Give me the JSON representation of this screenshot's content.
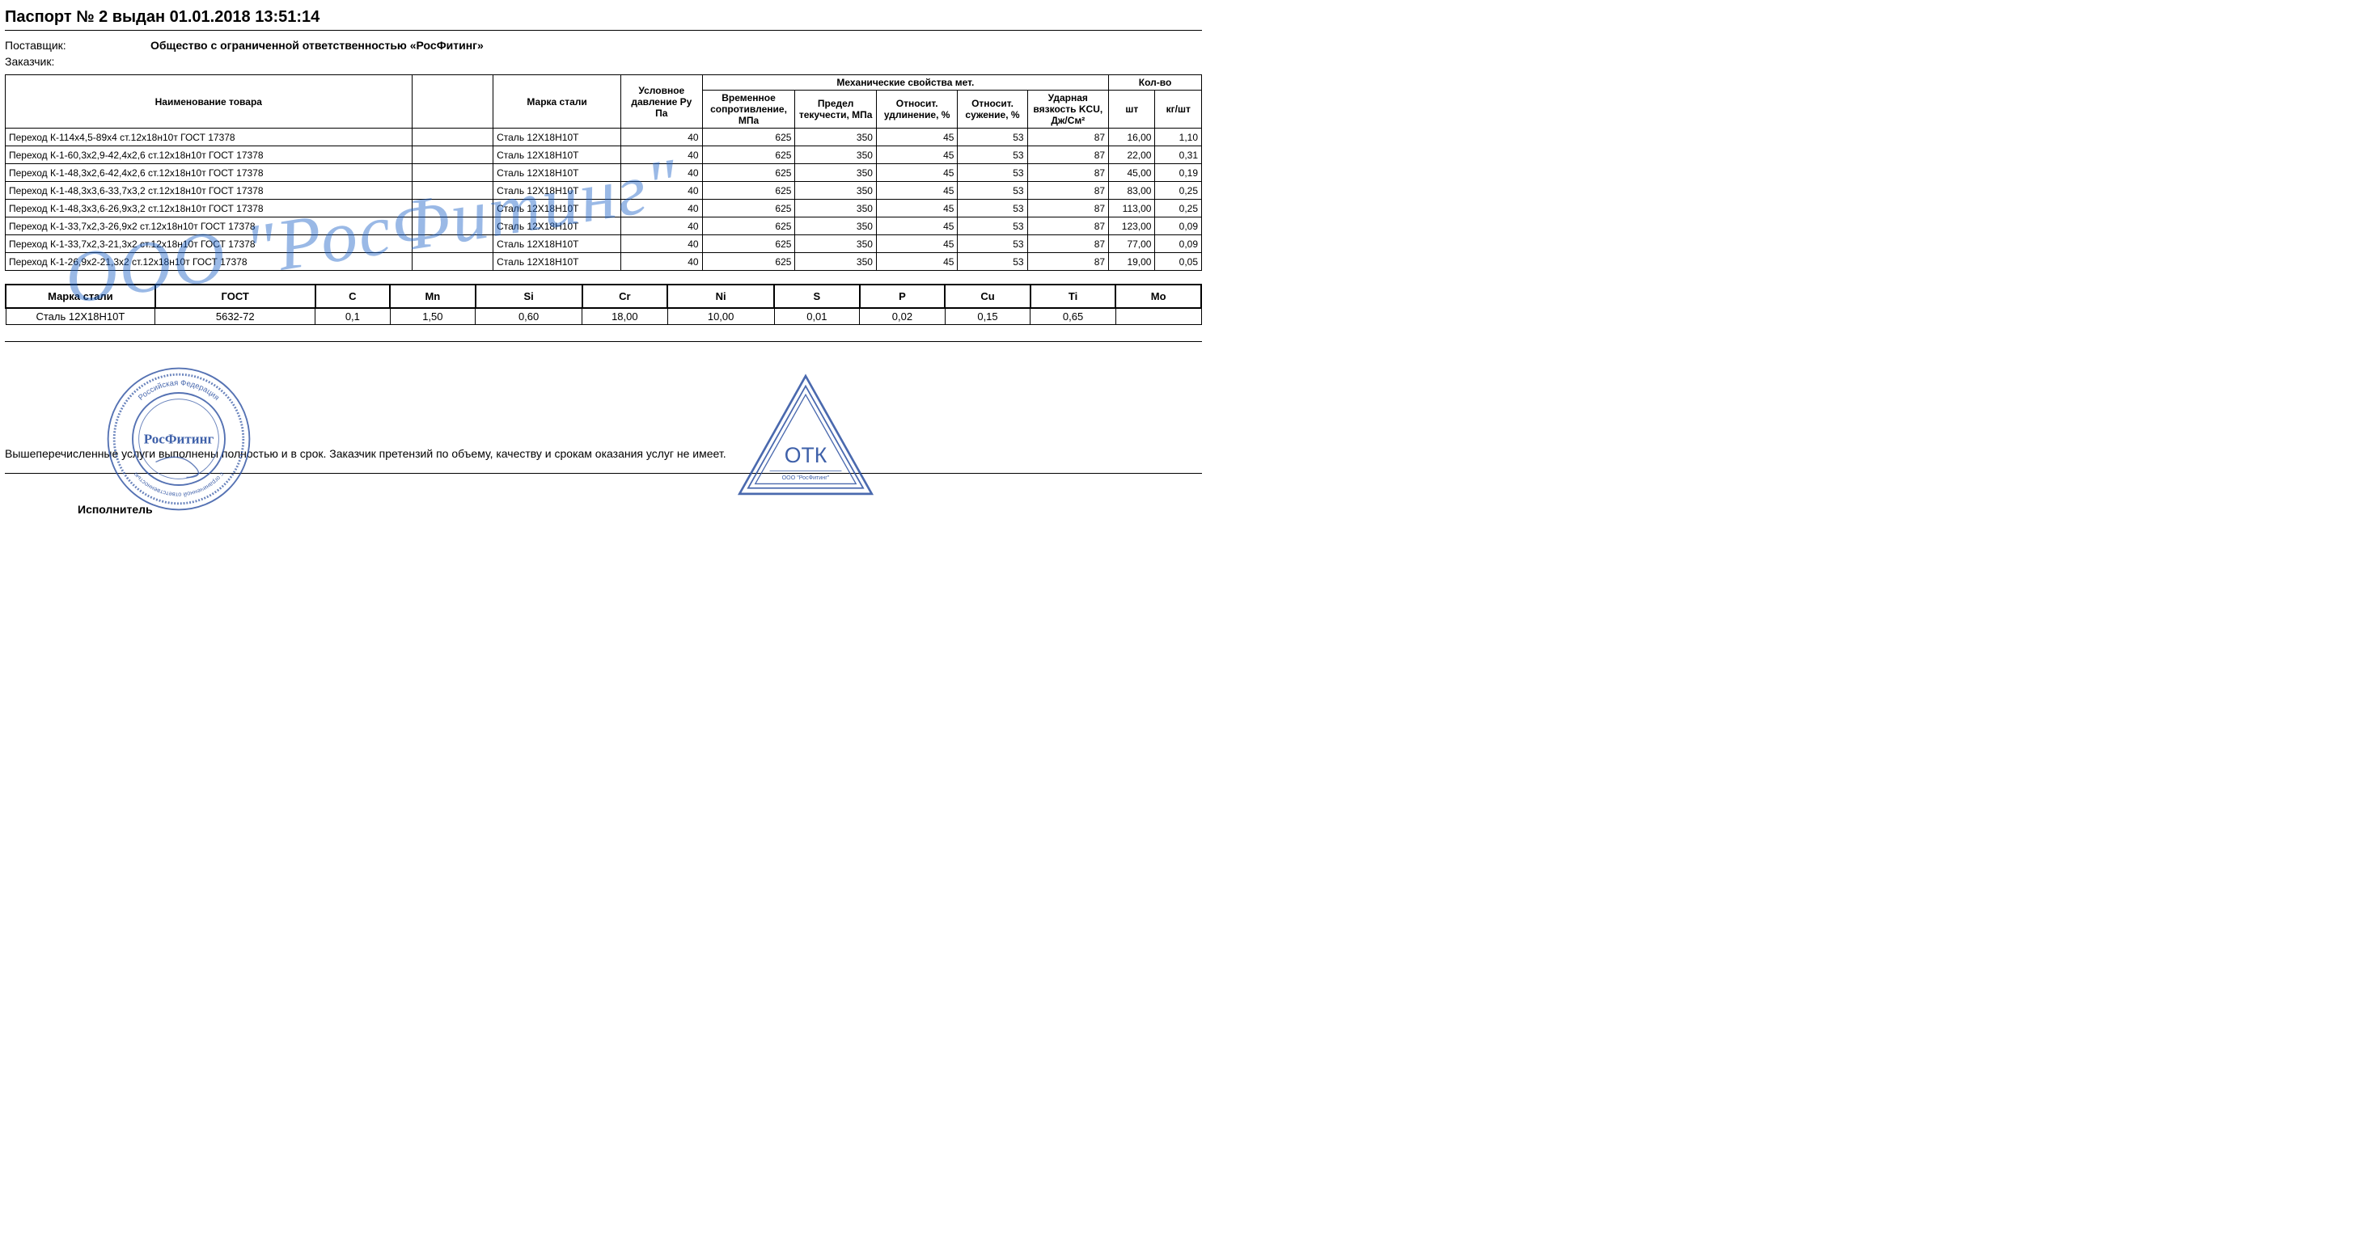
{
  "title": "Паспорт № 2 выдан 01.01.2018 13:51:14",
  "supplier_label": "Поставщик:",
  "supplier_value": "Общество с ограниченной ответственностью «РосФитинг»",
  "customer_label": "Заказчик:",
  "main_table": {
    "col_widths_pct": [
      35,
      7,
      11,
      7,
      8,
      7,
      7,
      6,
      7,
      4,
      4
    ],
    "header": {
      "name": "Наименование товара",
      "blank": "",
      "steel": "Марка стали",
      "pressure": "Условное давление Ру Па",
      "mech_group": "Механические свойства мет.",
      "mech": [
        "Временное сопротивление, МПа",
        "Предел текучести, МПа",
        "Относит. удлинение, %",
        "Относит. сужение, %",
        "Ударная вязкость KCU, Дж/См²"
      ],
      "qty_group": "Кол-во",
      "qty": [
        "шт",
        "кг/шт"
      ]
    },
    "rows": [
      {
        "name": "Переход К-114х4,5-89х4 ст.12х18н10т ГОСТ 17378",
        "steel": "Сталь 12Х18Н10Т",
        "p": "40",
        "v1": "625",
        "v2": "350",
        "v3": "45",
        "v4": "53",
        "v5": "87",
        "q1": "16,00",
        "q2": "1,10"
      },
      {
        "name": "Переход К-1-60,3х2,9-42,4х2,6 ст.12х18н10т ГОСТ 17378",
        "steel": "Сталь 12Х18Н10Т",
        "p": "40",
        "v1": "625",
        "v2": "350",
        "v3": "45",
        "v4": "53",
        "v5": "87",
        "q1": "22,00",
        "q2": "0,31"
      },
      {
        "name": "Переход К-1-48,3х2,6-42,4х2,6 ст.12х18н10т ГОСТ 17378",
        "steel": "Сталь 12Х18Н10Т",
        "p": "40",
        "v1": "625",
        "v2": "350",
        "v3": "45",
        "v4": "53",
        "v5": "87",
        "q1": "45,00",
        "q2": "0,19"
      },
      {
        "name": "Переход К-1-48,3х3,6-33,7х3,2 ст.12х18н10т ГОСТ 17378",
        "steel": "Сталь 12Х18Н10Т",
        "p": "40",
        "v1": "625",
        "v2": "350",
        "v3": "45",
        "v4": "53",
        "v5": "87",
        "q1": "83,00",
        "q2": "0,25"
      },
      {
        "name": "Переход К-1-48,3х3,6-26,9х3,2 ст.12х18н10т ГОСТ 17378",
        "steel": "Сталь 12Х18Н10Т",
        "p": "40",
        "v1": "625",
        "v2": "350",
        "v3": "45",
        "v4": "53",
        "v5": "87",
        "q1": "113,00",
        "q2": "0,25"
      },
      {
        "name": "Переход К-1-33,7х2,3-26,9х2 ст.12х18н10т ГОСТ 17378",
        "steel": "Сталь 12Х18Н10Т",
        "p": "40",
        "v1": "625",
        "v2": "350",
        "v3": "45",
        "v4": "53",
        "v5": "87",
        "q1": "123,00",
        "q2": "0,09"
      },
      {
        "name": "Переход К-1-33,7х2,3-21,3х2 ст.12х18н10т ГОСТ 17378",
        "steel": "Сталь 12Х18Н10Т",
        "p": "40",
        "v1": "625",
        "v2": "350",
        "v3": "45",
        "v4": "53",
        "v5": "87",
        "q1": "77,00",
        "q2": "0,09"
      },
      {
        "name": "Переход К-1-26,9х2-21,3х2 ст.12х18н10т ГОСТ 17378",
        "steel": "Сталь 12Х18Н10Т",
        "p": "40",
        "v1": "625",
        "v2": "350",
        "v3": "45",
        "v4": "53",
        "v5": "87",
        "q1": "19,00",
        "q2": "0,05"
      }
    ]
  },
  "chem_table": {
    "col_widths_pct": [
      14,
      15,
      7,
      8,
      10,
      8,
      10,
      8,
      8,
      8,
      8,
      8
    ],
    "headers": [
      "Марка стали",
      "ГОСТ",
      "C",
      "Mn",
      "Si",
      "Cr",
      "Ni",
      "S",
      "P",
      "Cu",
      "Ti",
      "Mo"
    ],
    "row": [
      "Сталь 12Х18Н10Т",
      "5632-72",
      "0,1",
      "1,50",
      "0,60",
      "18,00",
      "10,00",
      "0,01",
      "0,02",
      "0,15",
      "0,65",
      ""
    ]
  },
  "footer_text": "Вышеперечисленные услуги выполнены полностью и в срок. Заказчик претензий по объему, качеству и срокам оказания услуг не имеет.",
  "executor_label": "Исполнитель",
  "watermark_text": "ООО \"РосФитинг\"",
  "stamp_round": {
    "color": "#2a4fa0",
    "center_text": "РосФитинг",
    "outer_text_top": "Российская Федерация",
    "outer_text_bottom": "с ограниченной ответственностью"
  },
  "stamp_tri": {
    "color": "#2a4fa0",
    "text_main": "ОТК",
    "text_sub": "ООО \"РосФитинг\""
  }
}
